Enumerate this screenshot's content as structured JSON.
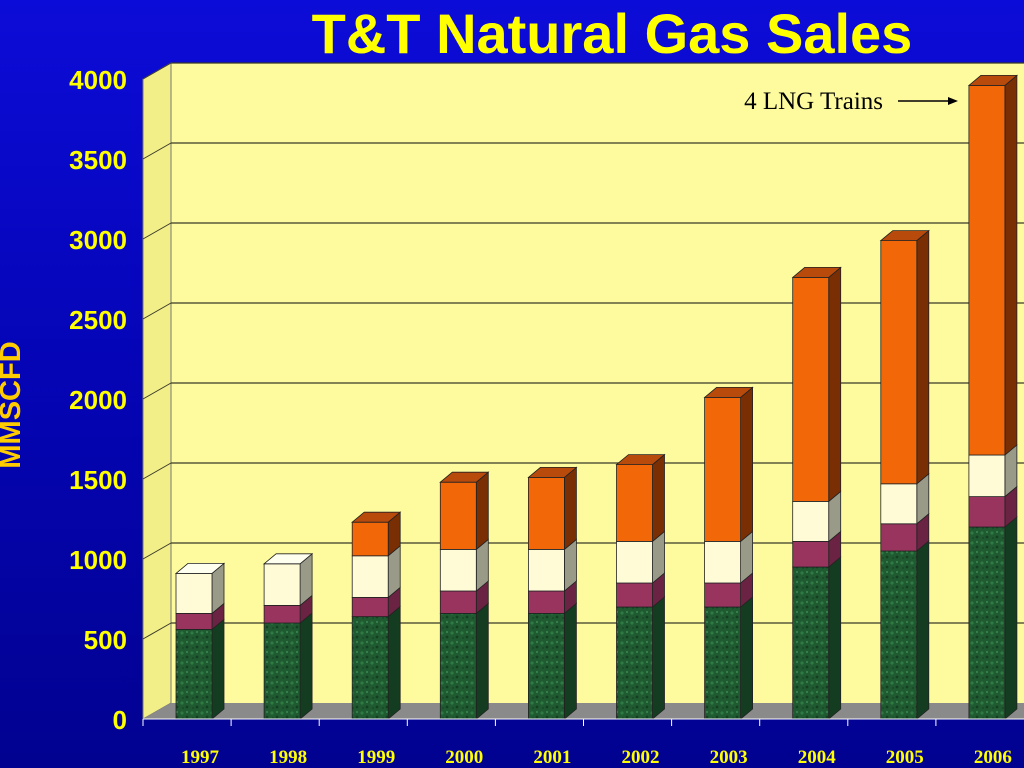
{
  "colors": {
    "title": "#ffff00",
    "tick_text": "#ffff00",
    "ylabel": "#ffcc00",
    "plot_back": "#fefb9e",
    "plot_side": "#f3ef88",
    "floor": "#8a8a8a",
    "gridline": "#3a3a2a",
    "stack": [
      "#1f5a30",
      "#99345f",
      "#fffbd6",
      "#f26708"
    ],
    "stack_side": [
      "#143c20",
      "#6a2342",
      "#9a9a88",
      "#7a2e04"
    ],
    "stack_top": [
      "#2c7a44",
      "#b84d78",
      "#fffff0",
      "#b84a0c"
    ]
  },
  "chart_data": {
    "type": "bar",
    "stacked": true,
    "three_d": true,
    "title": "T&T Natural Gas Sales",
    "xlabel": "",
    "ylabel": "MMSCFD",
    "ylim": [
      0,
      4000
    ],
    "yticks": [
      0,
      500,
      1000,
      1500,
      2000,
      2500,
      3000,
      3500,
      4000
    ],
    "grid": true,
    "legend": "none",
    "categories": [
      "1997",
      "1998",
      "1999",
      "2000",
      "2001",
      "2002",
      "2003",
      "2004",
      "2005",
      "2006"
    ],
    "series": [
      {
        "values": [
          560,
          600,
          640,
          660,
          660,
          700,
          700,
          950,
          1050,
          1200
        ]
      },
      {
        "values": [
          100,
          110,
          120,
          140,
          140,
          150,
          150,
          160,
          170,
          190
        ]
      },
      {
        "values": [
          250,
          260,
          260,
          260,
          260,
          260,
          260,
          250,
          250,
          260
        ]
      },
      {
        "values": [
          0,
          0,
          210,
          420,
          450,
          480,
          900,
          1400,
          1520,
          2310
        ]
      }
    ],
    "annotations": [
      {
        "text": "4 LNG Trains",
        "target": "2006"
      }
    ]
  }
}
